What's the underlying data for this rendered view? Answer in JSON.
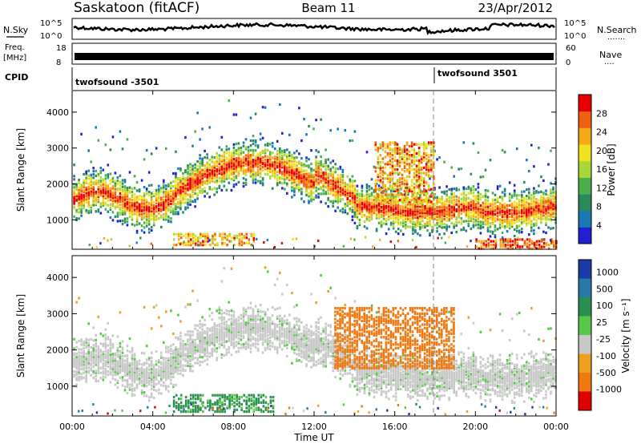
{
  "header": {
    "title": "Saskatoon (fitACF)",
    "beam": "Beam 11",
    "date": "23/Apr/2012"
  },
  "top_panels": {
    "nsky": {
      "left_label": "N.Sky",
      "left_ticks": [
        "10^5",
        "10^0"
      ],
      "right_ticks": [
        "10^5",
        "10^0"
      ],
      "right_label": "N.Search",
      "right_dots": "......."
    },
    "freq": {
      "left_label_1": "Freq.",
      "left_label_2": "[MHz]",
      "left_ticks": [
        "18",
        "8"
      ],
      "right_ticks": [
        "60",
        "0"
      ],
      "right_label": "Nave",
      "right_dots": "...."
    },
    "cpid": {
      "label": "CPID",
      "segments": [
        {
          "name": "twofsound -3501",
          "start_hour": 0
        },
        {
          "name": "twofsound 3501",
          "start_hour": 18
        }
      ]
    }
  },
  "chart_data": [
    {
      "type": "heatmap",
      "title": "",
      "xlabel": "Time UT",
      "ylabel": "Slant Range [km]",
      "x_ticks": [
        "00:00",
        "04:00",
        "08:00",
        "12:00",
        "16:00",
        "20:00",
        "00:00"
      ],
      "x_range_hours": [
        0,
        24
      ],
      "y_ticks": [
        1000,
        2000,
        3000,
        4000
      ],
      "ylim": [
        180,
        4600
      ],
      "colorbar": {
        "label": "Power [dB]",
        "ticks": [
          4,
          8,
          12,
          16,
          20,
          24,
          28
        ],
        "range": [
          0,
          32
        ],
        "colors": [
          "#2020d0",
          "#1878b8",
          "#2a8a5a",
          "#4bb04b",
          "#a8d838",
          "#f0e020",
          "#f8a818",
          "#f06010",
          "#e80000"
        ]
      },
      "features": [
        {
          "name": "main echo band",
          "time_hours": [
            0,
            24
          ],
          "range_km": [
            1200,
            2600
          ],
          "power_db": [
            14,
            30
          ]
        },
        {
          "name": "near-range echoes",
          "time_hours": [
            5,
            9
          ],
          "range_km": [
            300,
            650
          ],
          "power_db": [
            16,
            30
          ]
        },
        {
          "name": "near-range echoes late",
          "time_hours": [
            20,
            24
          ],
          "range_km": [
            200,
            500
          ],
          "power_db": [
            22,
            32
          ]
        },
        {
          "name": "plume structure",
          "time_hours": [
            15,
            18
          ],
          "range_km": [
            1500,
            3200
          ],
          "power_db": [
            16,
            30
          ]
        }
      ]
    },
    {
      "type": "heatmap",
      "title": "",
      "xlabel": "Time UT",
      "ylabel": "Slant Range [km]",
      "x_ticks": [
        "00:00",
        "04:00",
        "08:00",
        "12:00",
        "16:00",
        "20:00",
        "00:00"
      ],
      "x_range_hours": [
        0,
        24
      ],
      "y_ticks": [
        1000,
        2000,
        3000,
        4000
      ],
      "ylim": [
        180,
        4600
      ],
      "colorbar": {
        "label": "Velocity [m s⁻¹]",
        "ticks": [
          1000,
          500,
          100,
          25,
          -25,
          -100,
          -500,
          -1000
        ],
        "range": [
          -1000,
          1000
        ],
        "colors": [
          "#1a3aa8",
          "#2878a8",
          "#2a9050",
          "#58c848",
          "#c8c8c8",
          "#f0a020",
          "#f07810",
          "#e00000"
        ]
      },
      "features": [
        {
          "name": "ground scatter band",
          "time_hours": [
            0,
            24
          ],
          "range_km": [
            1200,
            2800
          ],
          "velocity_ms": [
            -25,
            25
          ]
        },
        {
          "name": "negative velocity plume",
          "time_hours": [
            13,
            19
          ],
          "range_km": [
            1500,
            3200
          ],
          "velocity_ms": [
            -500,
            -100
          ]
        },
        {
          "name": "positive velocity near range",
          "time_hours": [
            5,
            10
          ],
          "range_km": [
            300,
            800
          ],
          "velocity_ms": [
            25,
            500
          ]
        }
      ]
    }
  ]
}
